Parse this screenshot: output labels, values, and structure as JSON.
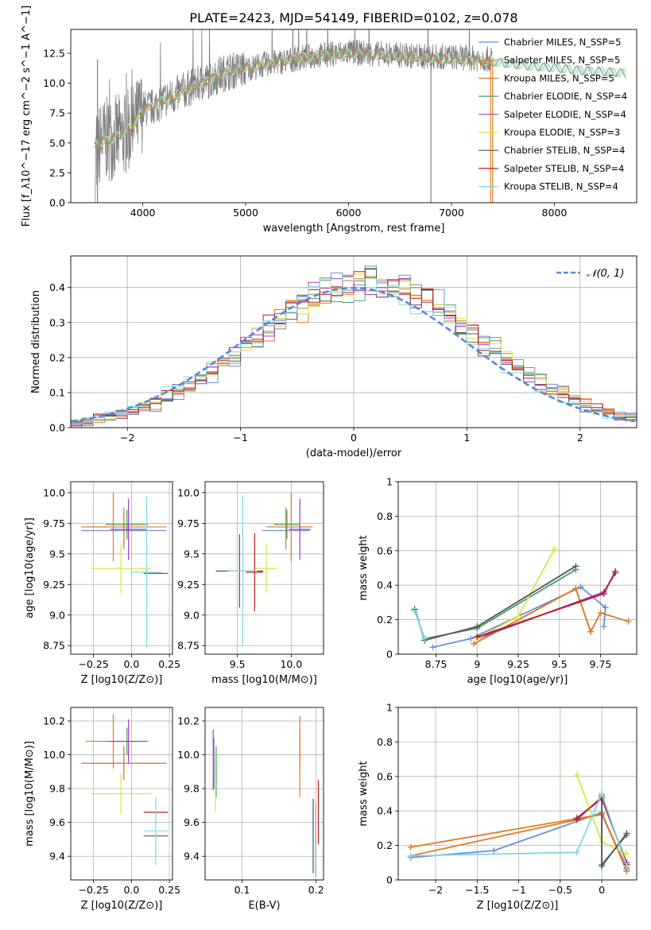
{
  "figure_title": "PLATE=2423, MJD=54149, FIBERID=0102, z=0.078",
  "series_colors": [
    "#6a8fd8",
    "#e07b22",
    "#e07b22",
    "#4a9e6a",
    "#9b3fc0",
    "#d4e84a",
    "#555555",
    "#c01818",
    "#7fd8e8"
  ],
  "chart_data": [
    {
      "type": "line",
      "ylabel": "Flux [f_λ10^−17 erg cm^−2 s^−1 A^−1]",
      "xlabel": "wavelength [Angstrom, rest frame]",
      "xlim": [
        3300,
        8800
      ],
      "ylim": [
        0,
        14.5
      ],
      "xticks": [
        4000,
        5000,
        6000,
        7000,
        8000
      ],
      "yticks": [
        0.0,
        2.5,
        5.0,
        7.5,
        10.0,
        12.5
      ],
      "legend_position": "right",
      "legend": [
        "Chabrier MILES, N_SSP=5",
        "Salpeter MILES, N_SSP=5",
        "Kroupa MILES, N_SSP=5",
        "Chabrier ELODIE, N_SSP=4",
        "Salpeter ELODIE, N_SSP=4",
        "Kroupa ELODIE, N_SSP=3",
        "Chabrier STELIB, N_SSP=4",
        "Salpeter STELIB, N_SSP=4",
        "Kroupa STELIB, N_SSP=4"
      ],
      "data_color": "#808080",
      "data": {
        "x": [
          3520,
          3600,
          3700,
          3800,
          3900,
          4000,
          4100,
          4200,
          4300,
          4400,
          4500,
          4600,
          4700,
          4800,
          4900,
          5000,
          5200,
          5400,
          5600,
          5800,
          6000,
          6200,
          6400,
          6600,
          6800,
          7000,
          7200,
          7400
        ],
        "y": [
          3.5,
          5.2,
          5.4,
          5.6,
          6.2,
          7.8,
          8.0,
          8.6,
          8.9,
          9.4,
          9.8,
          10.1,
          10.5,
          10.9,
          11.1,
          11.2,
          11.6,
          11.9,
          12.2,
          12.4,
          12.6,
          12.5,
          12.4,
          12.3,
          12.2,
          12.2,
          12.1,
          12.0
        ]
      },
      "model": {
        "x": [
          3530,
          3600,
          3700,
          3800,
          3900,
          4000,
          4100,
          4200,
          4300,
          4400,
          4500,
          4600,
          4700,
          4800,
          4900,
          5000,
          5200,
          5400,
          5600,
          5800,
          6000,
          6200,
          6400,
          6600,
          6800,
          7000,
          7200,
          7400,
          7600,
          7800,
          8000,
          8200,
          8400,
          8600,
          8700
        ],
        "y": [
          4.8,
          5.1,
          5.3,
          5.8,
          6.5,
          7.7,
          8.1,
          8.6,
          8.9,
          9.3,
          9.8,
          10.1,
          10.5,
          10.9,
          11.1,
          11.3,
          11.6,
          11.9,
          12.2,
          12.3,
          12.5,
          12.4,
          12.3,
          12.2,
          12.1,
          12.0,
          11.9,
          11.8,
          11.6,
          11.4,
          11.3,
          11.1,
          11.0,
          10.9,
          10.8
        ]
      }
    },
    {
      "type": "histogram",
      "ylabel": "Normed distribution",
      "xlabel": "(data-model)/error",
      "xlim": [
        -2.5,
        2.5
      ],
      "ylim": [
        0,
        0.49
      ],
      "xticks": [
        -2,
        -1,
        0,
        1,
        2
      ],
      "yticks": [
        0.0,
        0.1,
        0.2,
        0.3,
        0.4
      ],
      "legend": [
        "𝒩(0, 1)"
      ],
      "legend_position": "top-right",
      "normal_color": "#5b87d8",
      "bin_width": 0.1
    },
    {
      "type": "scatter",
      "xlabel": "Z [log10(Z/Z⊙)]",
      "ylabel": "age  [log10(age/yr)]",
      "xlim": [
        -0.4,
        0.27
      ],
      "ylim": [
        8.68,
        10.09
      ],
      "xticks": [
        -0.25,
        0.0,
        0.25
      ],
      "yticks": [
        8.75,
        9.0,
        9.25,
        9.5,
        9.75,
        10.0
      ],
      "points": [
        {
          "x": -0.05,
          "y": 9.69,
          "xerr": 0.28,
          "yerr": 0.15
        },
        {
          "x": -0.12,
          "y": 9.72,
          "xerr": 0.18,
          "yerr": 0.28
        },
        {
          "x": -0.05,
          "y": 9.72,
          "xerr": 0.28,
          "yerr": 0.16
        },
        {
          "x": -0.03,
          "y": 9.74,
          "xerr": 0.14,
          "yerr": 0.12
        },
        {
          "x": -0.02,
          "y": 9.7,
          "xerr": 0.12,
          "yerr": 0.25
        },
        {
          "x": -0.07,
          "y": 9.38,
          "xerr": 0.2,
          "yerr": 0.2
        },
        {
          "x": 0.16,
          "y": 9.34,
          "xerr": 0.08,
          "yerr": 0.0
        },
        {
          "x": 0.1,
          "y": 9.7,
          "xerr": 0.0,
          "yerr": 0.0
        },
        {
          "x": 0.1,
          "y": 9.35,
          "xerr": 0.1,
          "yerr": 0.62
        }
      ]
    },
    {
      "type": "scatter",
      "xlabel": "mass [log10(M/M⊙)]",
      "ylabel": "",
      "xlim": [
        9.2,
        10.3
      ],
      "ylim": [
        8.68,
        10.09
      ],
      "xticks": [
        9.5,
        10.0
      ],
      "yticks": [
        8.75,
        9.0,
        9.25,
        9.5,
        9.75,
        10.0
      ],
      "points": [
        {
          "x": 9.95,
          "y": 9.69,
          "xerr": 0.22,
          "yerr": 0.15
        },
        {
          "x": 10.0,
          "y": 9.72,
          "xerr": 0.2,
          "yerr": 0.28
        },
        {
          "x": 9.95,
          "y": 9.72,
          "xerr": 0.18,
          "yerr": 0.16
        },
        {
          "x": 9.96,
          "y": 9.74,
          "xerr": 0.12,
          "yerr": 0.12
        },
        {
          "x": 10.08,
          "y": 9.7,
          "xerr": 0.1,
          "yerr": 0.25
        },
        {
          "x": 9.77,
          "y": 9.38,
          "xerr": 0.1,
          "yerr": 0.2
        },
        {
          "x": 9.52,
          "y": 9.36,
          "xerr": 0.22,
          "yerr": 0.3
        },
        {
          "x": 9.66,
          "y": 9.35,
          "xerr": 0.08,
          "yerr": 0.32
        },
        {
          "x": 9.55,
          "y": 9.36,
          "xerr": 0.14,
          "yerr": 0.62
        }
      ]
    },
    {
      "type": "line",
      "xlabel": "age  [log10(age/yr)]",
      "ylabel": "mass weight",
      "xlim": [
        8.52,
        9.97
      ],
      "ylim": [
        0,
        1.0
      ],
      "xticks": [
        8.75,
        9.0,
        9.25,
        9.5,
        9.75
      ],
      "yticks": [
        0.0,
        0.2,
        0.4,
        0.6,
        0.8,
        1.0
      ],
      "series": [
        {
          "x": [
            8.73,
            8.96,
            9.63,
            9.78,
            9.77
          ],
          "y": [
            0.04,
            0.09,
            0.39,
            0.27,
            0.16
          ]
        },
        {
          "x": [
            8.98,
            9.6,
            9.69,
            9.75,
            9.92
          ],
          "y": [
            0.06,
            0.38,
            0.13,
            0.24,
            0.19
          ]
        },
        {
          "x": [
            8.98,
            9.6,
            9.69
          ],
          "y": [
            0.06,
            0.38,
            0.13
          ]
        },
        {
          "x": [
            8.62,
            8.68,
            9.0,
            9.6
          ],
          "y": [
            0.26,
            0.09,
            0.15,
            0.49
          ]
        },
        {
          "x": [
            9.0,
            9.77,
            9.84
          ],
          "y": [
            0.09,
            0.36,
            0.47
          ]
        },
        {
          "x": [
            9.47,
            9.25,
            9.0
          ],
          "y": [
            0.61,
            0.22,
            0.09
          ]
        },
        {
          "x": [
            8.62,
            8.68,
            9.0,
            9.6
          ],
          "y": [
            0.26,
            0.08,
            0.16,
            0.51
          ]
        },
        {
          "x": [
            9.0,
            9.77,
            9.84
          ],
          "y": [
            0.1,
            0.35,
            0.48
          ]
        },
        {
          "x": [
            8.62,
            8.68
          ],
          "y": [
            0.25,
            0.09
          ]
        }
      ]
    },
    {
      "type": "scatter",
      "xlabel": "Z [log10(Z/Z⊙)]",
      "ylabel": "mass [log10(M/M⊙)]",
      "xlim": [
        -0.4,
        0.27
      ],
      "ylim": [
        9.26,
        10.28
      ],
      "xticks": [
        -0.25,
        0.0,
        0.25
      ],
      "yticks": [
        9.4,
        9.6,
        9.8,
        10.0,
        10.2
      ],
      "points": [
        {
          "x": -0.05,
          "y": 9.95,
          "xerr": 0.28,
          "yerr": 0.1
        },
        {
          "x": -0.12,
          "y": 10.08,
          "xerr": 0.18,
          "yerr": 0.16
        },
        {
          "x": -0.05,
          "y": 9.95,
          "xerr": 0.28,
          "yerr": 0.1
        },
        {
          "x": -0.03,
          "y": 10.08,
          "xerr": 0.14,
          "yerr": 0.08
        },
        {
          "x": -0.02,
          "y": 10.08,
          "xerr": 0.12,
          "yerr": 0.13
        },
        {
          "x": -0.07,
          "y": 9.77,
          "xerr": 0.2,
          "yerr": 0.12
        },
        {
          "x": 0.16,
          "y": 9.52,
          "xerr": 0.08,
          "yerr": 0.0
        },
        {
          "x": 0.16,
          "y": 9.66,
          "xerr": 0.08,
          "yerr": 0.0
        },
        {
          "x": 0.16,
          "y": 9.55,
          "xerr": 0.08,
          "yerr": 0.2
        }
      ]
    },
    {
      "type": "scatter",
      "xlabel": "E(B-V)",
      "ylabel": "",
      "xlim": [
        0.05,
        0.21
      ],
      "ylim": [
        9.26,
        10.28
      ],
      "xticks": [
        0.1,
        0.2
      ],
      "yticks": [
        9.4,
        9.6,
        9.8,
        10.0,
        10.2
      ],
      "points": [
        {
          "x": 0.062,
          "y": 9.95,
          "yerr": 0.15
        },
        {
          "x": 0.178,
          "y": 9.95,
          "yerr": 0.2
        },
        {
          "x": 0.178,
          "y": 10.08,
          "yerr": 0.15
        },
        {
          "x": 0.065,
          "y": 9.9,
          "yerr": 0.15
        },
        {
          "x": 0.061,
          "y": 9.97,
          "yerr": 0.18
        },
        {
          "x": 0.064,
          "y": 9.84,
          "yerr": 0.18
        },
        {
          "x": 0.196,
          "y": 9.52,
          "yerr": 0.22
        },
        {
          "x": 0.203,
          "y": 9.66,
          "yerr": 0.19
        },
        {
          "x": 0.199,
          "y": 9.5,
          "yerr": 0.22
        }
      ]
    },
    {
      "type": "line",
      "xlabel": "Z [log10(Z/Z⊙)]",
      "ylabel": "mass weight",
      "xlim": [
        -2.45,
        0.42
      ],
      "ylim": [
        0,
        1.0
      ],
      "xticks": [
        -2.0,
        -1.5,
        -1.0,
        -0.5,
        0.0
      ],
      "yticks": [
        0.0,
        0.2,
        0.4,
        0.6,
        0.8,
        1.0
      ],
      "series": [
        {
          "x": [
            -2.3,
            -1.3,
            0.0,
            0.3
          ],
          "y": [
            0.13,
            0.17,
            0.39,
            0.05
          ]
        },
        {
          "x": [
            -2.3,
            0.0,
            0.3
          ],
          "y": [
            0.19,
            0.38,
            0.06
          ]
        },
        {
          "x": [
            -2.3,
            0.0,
            0.3
          ],
          "y": [
            0.14,
            0.38,
            0.07
          ]
        },
        {
          "x": [
            0.0,
            0.0,
            0.3
          ],
          "y": [
            0.49,
            0.09,
            0.26
          ]
        },
        {
          "x": [
            -0.3,
            0.0,
            0.3
          ],
          "y": [
            0.36,
            0.47,
            0.1
          ]
        },
        {
          "x": [
            -0.3,
            0.0,
            0.3
          ],
          "y": [
            0.61,
            0.22,
            0.15
          ]
        },
        {
          "x": [
            0.0,
            0.0,
            0.3
          ],
          "y": [
            0.5,
            0.08,
            0.27
          ]
        },
        {
          "x": [
            -0.3,
            0.0,
            0.3
          ],
          "y": [
            0.35,
            0.48,
            0.09
          ]
        },
        {
          "x": [
            -2.3,
            -0.3,
            0.0,
            0.3
          ],
          "y": [
            0.14,
            0.16,
            0.5,
            0.08
          ]
        }
      ]
    }
  ]
}
